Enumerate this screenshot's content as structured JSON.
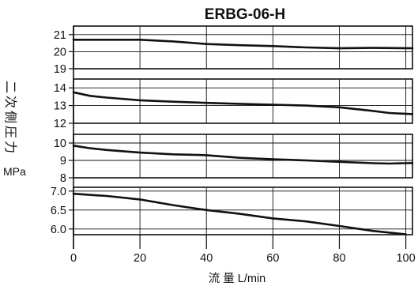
{
  "chart_data": {
    "type": "line",
    "title": "ERBG-06-H",
    "xlabel": "流 量 L/min",
    "ylabel": "二次側圧力",
    "yunit": "MPa",
    "xlim": [
      0,
      102
    ],
    "xticks": [
      0,
      20,
      40,
      60,
      80,
      100
    ],
    "grid": true,
    "panels": [
      {
        "ylim": [
          19,
          21.5
        ],
        "yticks": [
          "21",
          "20",
          "19"
        ],
        "series": [
          {
            "x": [
              0,
              10,
              20,
              30,
              40,
              50,
              60,
              70,
              80,
              90,
              102
            ],
            "y": [
              20.7,
              20.7,
              20.7,
              20.6,
              20.45,
              20.38,
              20.33,
              20.25,
              20.2,
              20.22,
              20.2
            ]
          }
        ]
      },
      {
        "ylim": [
          12,
          14.5
        ],
        "yticks": [
          "14",
          "13",
          "12"
        ],
        "series": [
          {
            "x": [
              0,
              5,
              10,
              20,
              30,
              40,
              50,
              60,
              70,
              80,
              90,
              95,
              102
            ],
            "y": [
              13.75,
              13.55,
              13.45,
              13.3,
              13.22,
              13.15,
              13.1,
              13.05,
              13.0,
              12.9,
              12.7,
              12.58,
              12.52
            ]
          }
        ]
      },
      {
        "ylim": [
          8,
          10.5
        ],
        "yticks": [
          "10",
          "9",
          "8"
        ],
        "series": [
          {
            "x": [
              0,
              5,
              10,
              20,
              30,
              40,
              50,
              60,
              70,
              80,
              90,
              95,
              102
            ],
            "y": [
              9.85,
              9.7,
              9.6,
              9.45,
              9.35,
              9.3,
              9.15,
              9.07,
              9.0,
              8.92,
              8.84,
              8.82,
              8.85
            ]
          }
        ]
      },
      {
        "ylim": [
          5.85,
          7.1
        ],
        "yticks": [
          "7.0",
          "6.5",
          "6.0"
        ],
        "series": [
          {
            "x": [
              0,
              10,
              20,
              30,
              40,
              50,
              60,
              70,
              80,
              90,
              100
            ],
            "y": [
              6.93,
              6.87,
              6.78,
              6.63,
              6.5,
              6.4,
              6.28,
              6.2,
              6.08,
              5.95,
              5.86
            ]
          }
        ]
      }
    ]
  }
}
